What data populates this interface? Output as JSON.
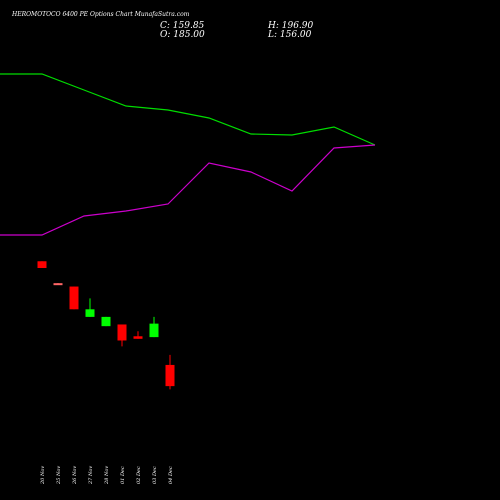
{
  "chart_data": {
    "type": "candlestick",
    "title": "HEROMOTOCO 6400 PE Options Chart MunafaSutra.com",
    "ohlc_readout": {
      "close": "C: 159.85",
      "open": "O: 185.00",
      "high": "H: 196.90",
      "low": "L: 156.00"
    },
    "price_range": [
      130,
      330
    ],
    "categories": [
      "20 Nov",
      "25 Nov",
      "26 Nov",
      "27 Nov",
      "28 Nov",
      "01 Dec",
      "02 Dec",
      "03 Dec",
      "04 Dec"
    ],
    "candles": [
      {
        "open": 308.0,
        "close": 300.0,
        "high": 308.0,
        "low": 300.0
      },
      {
        "open": 282.0,
        "close": 281.0,
        "high": 282.0,
        "low": 281.0
      },
      {
        "open": 278.0,
        "close": 251.0,
        "high": 278.0,
        "low": 251.0
      },
      {
        "open": 242.0,
        "close": 251.0,
        "high": 264.0,
        "low": 242.0
      },
      {
        "open": 231.0,
        "close": 242.0,
        "high": 242.0,
        "low": 231.0
      },
      {
        "open": 233.0,
        "close": 214.0,
        "high": 233.0,
        "low": 207.0
      },
      {
        "open": 219.0,
        "close": 216.0,
        "high": 225.0,
        "low": 216.0
      },
      {
        "open": 218.0,
        "close": 234.0,
        "high": 242.0,
        "low": 218.0
      },
      {
        "open": 185.0,
        "close": 159.85,
        "high": 196.9,
        "low": 156.0
      }
    ],
    "colors": {
      "up": "#00ff00",
      "down": "#ff0000",
      "doji": "#ff6666",
      "line_green": "#00dd00",
      "line_magenta": "#cc00cc"
    },
    "indicator_lines": [
      {
        "color": "#00dd00",
        "points": [
          [
            0,
            74
          ],
          [
            42,
            74
          ],
          [
            84,
            90
          ],
          [
            126,
            106
          ],
          [
            168,
            110
          ],
          [
            209,
            118
          ],
          [
            251,
            134
          ],
          [
            292,
            135
          ],
          [
            334,
            127
          ],
          [
            375,
            145
          ]
        ]
      },
      {
        "color": "#cc00cc",
        "points": [
          [
            0,
            235
          ],
          [
            42,
            235
          ],
          [
            84,
            216
          ],
          [
            126,
            211
          ],
          [
            168,
            204
          ],
          [
            209,
            163
          ],
          [
            251,
            172
          ],
          [
            292,
            191
          ],
          [
            334,
            148
          ],
          [
            375,
            145
          ]
        ]
      }
    ]
  }
}
